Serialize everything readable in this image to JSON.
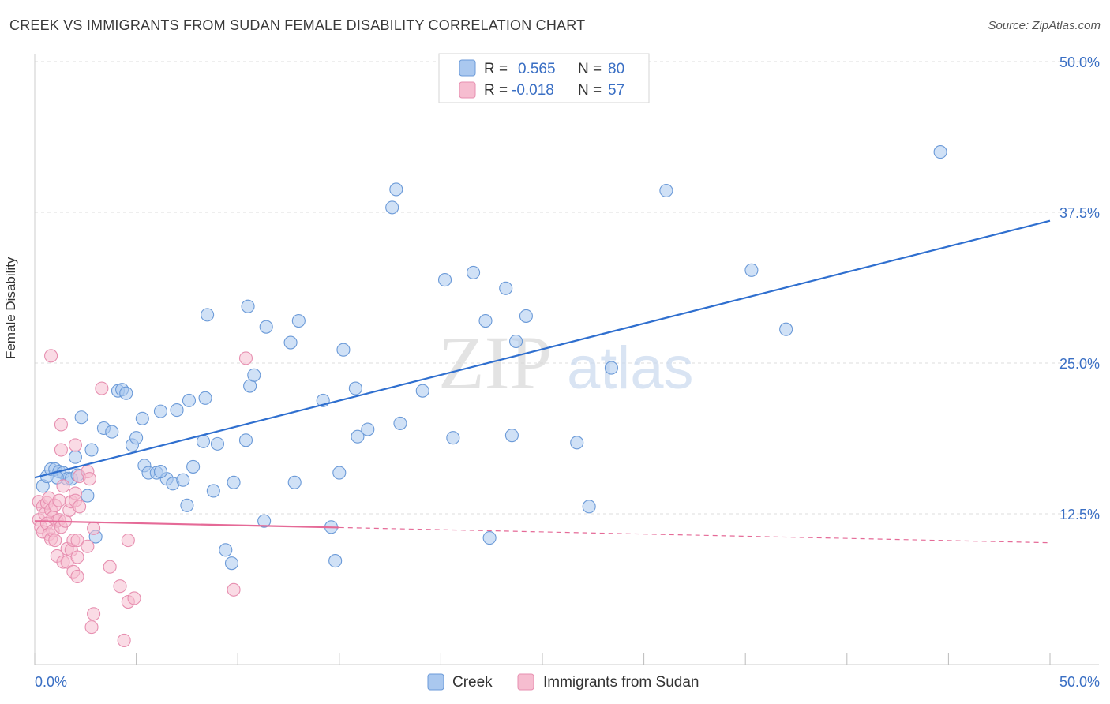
{
  "header": {
    "title": "CREEK VS IMMIGRANTS FROM SUDAN FEMALE DISABILITY CORRELATION CHART",
    "source": "Source: ZipAtlas.com"
  },
  "watermark": {
    "zip": "ZIP",
    "atlas": "atlas"
  },
  "colors": {
    "creek_fill": "#aac8ef",
    "creek_stroke": "#6b9ad8",
    "creek_line": "#2f6fcf",
    "sudan_fill": "#f6bdd0",
    "sudan_stroke": "#e78fb0",
    "sudan_line": "#e56a97",
    "tick_label": "#3a6fc4",
    "grid": "#dddddd"
  },
  "legend": {
    "rows": [
      {
        "r_label": "R =",
        "r_value": "0.565",
        "n_label": "N =",
        "n_value": "80"
      },
      {
        "r_label": "R =",
        "r_value": "-0.018",
        "n_label": "N =",
        "n_value": "57"
      }
    ]
  },
  "bottom_legend": [
    "Creek",
    "Immigrants from Sudan"
  ],
  "chart_data": {
    "type": "scatter",
    "title": "CREEK VS IMMIGRANTS FROM SUDAN FEMALE DISABILITY CORRELATION CHART",
    "xlabel": "",
    "ylabel": "Female Disability",
    "xlim": [
      0,
      50
    ],
    "ylim": [
      0,
      50
    ],
    "x_tick_labels": [
      "0.0%",
      "50.0%"
    ],
    "y_tick_values": [
      12.5,
      25.0,
      37.5,
      50.0
    ],
    "y_tick_labels": [
      "12.5%",
      "25.0%",
      "37.5%",
      "50.0%"
    ],
    "grid": true,
    "legend_position": "top-center",
    "series": [
      {
        "name": "Creek",
        "R": 0.565,
        "N": 80,
        "trend": {
          "x": [
            0,
            50
          ],
          "y": [
            15.5,
            36.8
          ],
          "dashed_from": null
        },
        "points": [
          [
            0.4,
            14.8
          ],
          [
            0.6,
            15.6
          ],
          [
            0.8,
            16.2
          ],
          [
            1.0,
            16.2
          ],
          [
            1.2,
            16.0
          ],
          [
            1.4,
            15.9
          ],
          [
            1.6,
            15.4
          ],
          [
            1.8,
            15.4
          ],
          [
            2.0,
            17.2
          ],
          [
            2.3,
            20.5
          ],
          [
            2.6,
            14.0
          ],
          [
            2.8,
            17.8
          ],
          [
            3.0,
            10.6
          ],
          [
            3.4,
            19.6
          ],
          [
            3.8,
            19.3
          ],
          [
            4.1,
            22.7
          ],
          [
            4.3,
            22.8
          ],
          [
            4.5,
            22.5
          ],
          [
            4.8,
            18.2
          ],
          [
            5.0,
            18.8
          ],
          [
            5.3,
            20.4
          ],
          [
            5.4,
            16.5
          ],
          [
            5.6,
            15.9
          ],
          [
            6.0,
            15.9
          ],
          [
            6.2,
            21.0
          ],
          [
            6.5,
            15.4
          ],
          [
            6.8,
            15.0
          ],
          [
            7.0,
            21.1
          ],
          [
            7.3,
            15.3
          ],
          [
            7.5,
            13.2
          ],
          [
            7.6,
            21.9
          ],
          [
            7.8,
            16.4
          ],
          [
            8.3,
            18.5
          ],
          [
            8.4,
            22.1
          ],
          [
            8.5,
            29.0
          ],
          [
            8.8,
            14.4
          ],
          [
            9.0,
            18.3
          ],
          [
            9.4,
            9.5
          ],
          [
            9.7,
            8.4
          ],
          [
            9.8,
            15.1
          ],
          [
            10.4,
            18.6
          ],
          [
            10.5,
            29.7
          ],
          [
            10.6,
            23.1
          ],
          [
            10.8,
            24.0
          ],
          [
            11.3,
            11.9
          ],
          [
            11.4,
            28.0
          ],
          [
            12.6,
            26.7
          ],
          [
            12.8,
            15.1
          ],
          [
            13.0,
            28.5
          ],
          [
            14.2,
            21.9
          ],
          [
            14.6,
            11.4
          ],
          [
            14.8,
            8.6
          ],
          [
            15.0,
            15.9
          ],
          [
            15.2,
            26.1
          ],
          [
            15.8,
            22.9
          ],
          [
            15.9,
            18.9
          ],
          [
            16.4,
            19.5
          ],
          [
            17.6,
            37.9
          ],
          [
            17.8,
            39.4
          ],
          [
            18.0,
            20.0
          ],
          [
            19.1,
            22.7
          ],
          [
            20.2,
            31.9
          ],
          [
            20.6,
            18.8
          ],
          [
            21.6,
            32.5
          ],
          [
            22.2,
            28.5
          ],
          [
            22.4,
            10.5
          ],
          [
            23.2,
            31.2
          ],
          [
            23.5,
            19.0
          ],
          [
            23.7,
            26.8
          ],
          [
            24.2,
            28.9
          ],
          [
            26.7,
            18.4
          ],
          [
            27.3,
            13.1
          ],
          [
            28.4,
            24.6
          ],
          [
            31.1,
            39.3
          ],
          [
            35.3,
            32.7
          ],
          [
            37.0,
            27.8
          ],
          [
            44.6,
            42.5
          ],
          [
            1.1,
            15.5
          ],
          [
            2.1,
            15.7
          ],
          [
            6.2,
            16.0
          ]
        ]
      },
      {
        "name": "Immigrants from Sudan",
        "R": -0.018,
        "N": 57,
        "trend": {
          "x": [
            0,
            50
          ],
          "y": [
            11.9,
            10.1
          ],
          "dashed_from": 15
        },
        "points": [
          [
            0.2,
            13.5
          ],
          [
            0.2,
            12.0
          ],
          [
            0.3,
            11.4
          ],
          [
            0.4,
            13.1
          ],
          [
            0.4,
            11.0
          ],
          [
            0.5,
            12.5
          ],
          [
            0.6,
            13.4
          ],
          [
            0.6,
            11.7
          ],
          [
            0.7,
            13.8
          ],
          [
            0.7,
            10.8
          ],
          [
            0.8,
            12.8
          ],
          [
            0.8,
            10.4
          ],
          [
            0.9,
            12.2
          ],
          [
            0.9,
            11.1
          ],
          [
            1.0,
            13.2
          ],
          [
            1.0,
            10.3
          ],
          [
            0.8,
            25.6
          ],
          [
            1.1,
            11.9
          ],
          [
            1.1,
            9.0
          ],
          [
            1.2,
            12.0
          ],
          [
            1.2,
            13.6
          ],
          [
            1.3,
            11.4
          ],
          [
            1.3,
            17.8
          ],
          [
            1.4,
            8.5
          ],
          [
            1.4,
            14.8
          ],
          [
            1.5,
            11.9
          ],
          [
            1.6,
            8.5
          ],
          [
            1.6,
            9.6
          ],
          [
            1.7,
            12.8
          ],
          [
            1.8,
            13.5
          ],
          [
            1.8,
            9.5
          ],
          [
            1.9,
            10.3
          ],
          [
            1.9,
            7.7
          ],
          [
            2.0,
            14.2
          ],
          [
            2.0,
            13.6
          ],
          [
            2.0,
            18.2
          ],
          [
            2.1,
            7.3
          ],
          [
            2.1,
            8.9
          ],
          [
            2.1,
            10.3
          ],
          [
            2.2,
            13.1
          ],
          [
            2.2,
            15.6
          ],
          [
            2.6,
            9.8
          ],
          [
            2.6,
            16.0
          ],
          [
            2.7,
            15.4
          ],
          [
            2.8,
            3.1
          ],
          [
            2.9,
            4.2
          ],
          [
            2.9,
            11.3
          ],
          [
            3.3,
            22.9
          ],
          [
            3.7,
            8.1
          ],
          [
            4.2,
            6.5
          ],
          [
            4.4,
            2.0
          ],
          [
            4.6,
            10.3
          ],
          [
            4.6,
            5.2
          ],
          [
            4.9,
            5.5
          ],
          [
            9.8,
            6.2
          ],
          [
            10.4,
            25.4
          ],
          [
            1.3,
            19.9
          ]
        ]
      }
    ]
  }
}
